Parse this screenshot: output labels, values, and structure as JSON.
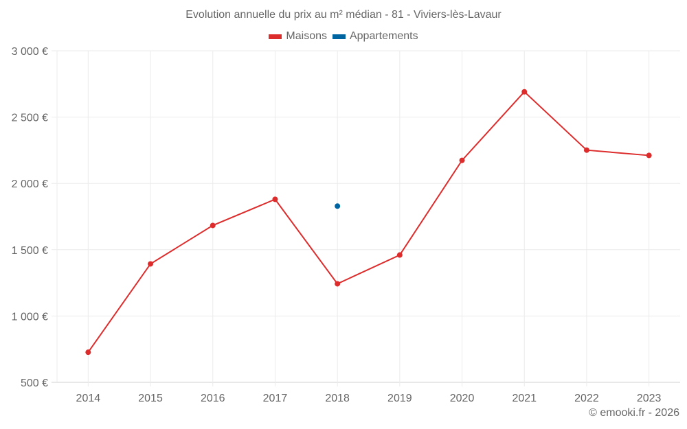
{
  "chart": {
    "title": "Evolution annuelle du prix au m² médian - 81 - Viviers-lès-Lavaur",
    "legend": [
      {
        "label": "Maisons",
        "color": "#dd2c2c"
      },
      {
        "label": "Appartements",
        "color": "#0064a0"
      }
    ],
    "credit": "© emooki.fr - 2026",
    "y_tick_labels": [
      "3 000 €",
      "2 500 €",
      "2 000 €",
      "1 500 €",
      "1 000 €",
      "500 €"
    ],
    "x_tick_labels": [
      "2014",
      "2015",
      "2016",
      "2017",
      "2018",
      "2019",
      "2020",
      "2021",
      "2022",
      "2023"
    ]
  },
  "chart_data": {
    "type": "line",
    "title": "Evolution annuelle du prix au m² médian - 81 - Viviers-lès-Lavaur",
    "xlabel": "",
    "ylabel": "",
    "categories": [
      "2014",
      "2015",
      "2016",
      "2017",
      "2018",
      "2019",
      "2020",
      "2021",
      "2022",
      "2023"
    ],
    "series": [
      {
        "name": "Maisons",
        "color": "#dd2c2c",
        "values": [
          727,
          1393,
          1683,
          1880,
          1243,
          1460,
          2174,
          2691,
          2251,
          2211
        ]
      },
      {
        "name": "Appartements",
        "color": "#0064a0",
        "values": [
          null,
          null,
          null,
          null,
          1829,
          null,
          null,
          null,
          null,
          null
        ]
      }
    ],
    "ylim": [
      500,
      3000
    ],
    "yticks": [
      500,
      1000,
      1500,
      2000,
      2500,
      3000
    ],
    "grid": true,
    "legend_position": "top"
  }
}
